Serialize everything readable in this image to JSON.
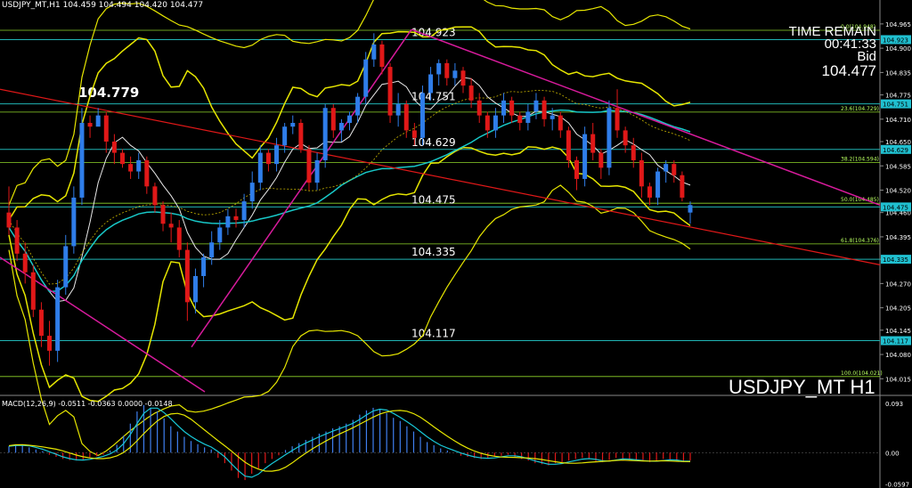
{
  "header": {
    "symbol_line": "USDJPY_MT,H1  104.459 104.494 104.420 104.477",
    "macd_line": "MACD(12,26,9) -0.0511 -0.0363 0.0000 -0.0148"
  },
  "info": {
    "time_remain_label": "TIME REMAIN",
    "time_remain_value": "00:41:33",
    "bid_label": "Bid",
    "bid_value": "104.477",
    "symbol_label": "USDJPY_MT H1"
  },
  "chart_data": {
    "type": "candlestick",
    "ylim": [
      103.98,
      105.01
    ],
    "price_ticks": [
      "104.965",
      "104.900",
      "104.835",
      "104.775",
      "104.710",
      "104.650",
      "104.585",
      "104.520",
      "104.460",
      "104.395",
      "104.335",
      "104.270",
      "104.205",
      "104.145",
      "104.080",
      "104.015"
    ],
    "macd_ticks": [
      "0.093",
      "0.00",
      "-0.0597"
    ],
    "macd_ylim": [
      -0.062,
      0.095
    ],
    "level_labels": [
      {
        "text": "104.923",
        "value": 104.923,
        "box": "104.923"
      },
      {
        "text": "104.751",
        "value": 104.751,
        "box": "104.751"
      },
      {
        "text": "104.629",
        "value": 104.629,
        "box": "104.629"
      },
      {
        "text": "104.475",
        "value": 104.475,
        "box": "104.475"
      },
      {
        "text": "104.335",
        "value": 104.335,
        "box": "104.335"
      },
      {
        "text": "104.117",
        "value": 104.117,
        "box": "104.117"
      }
    ],
    "fibo_levels": [
      {
        "label": "0.0(104.948)",
        "value": 104.948
      },
      {
        "label": "23.6(104.729)",
        "value": 104.729
      },
      {
        "label": "38.2(104.594)",
        "value": 104.594
      },
      {
        "label": "50.0(104.485)",
        "value": 104.485
      },
      {
        "label": "61.8(104.376)",
        "value": 104.376
      },
      {
        "label": "100.0(104.021)",
        "value": 104.021
      }
    ],
    "highlight_label": {
      "text": "104.779",
      "value": 104.779
    },
    "candles": [
      [
        104.46,
        104.53,
        104.4,
        104.42
      ],
      [
        104.42,
        104.44,
        104.33,
        104.35
      ],
      [
        104.35,
        104.38,
        104.27,
        104.3
      ],
      [
        104.3,
        104.32,
        104.18,
        104.2
      ],
      [
        104.2,
        104.22,
        104.1,
        104.13
      ],
      [
        104.13,
        104.17,
        104.05,
        104.09
      ],
      [
        104.09,
        104.28,
        104.06,
        104.26
      ],
      [
        104.26,
        104.4,
        104.24,
        104.37
      ],
      [
        104.37,
        104.53,
        104.35,
        104.5
      ],
      [
        104.5,
        104.74,
        104.48,
        104.7
      ],
      [
        104.7,
        104.72,
        104.66,
        104.69
      ],
      [
        104.69,
        104.74,
        104.7,
        104.72
      ],
      [
        104.72,
        104.73,
        104.62,
        104.65
      ],
      [
        104.65,
        104.67,
        104.59,
        104.62
      ],
      [
        104.62,
        104.63,
        104.58,
        104.59
      ],
      [
        104.59,
        104.61,
        104.55,
        104.57
      ],
      [
        104.57,
        104.62,
        104.55,
        104.6
      ],
      [
        104.6,
        104.61,
        104.51,
        104.53
      ],
      [
        104.53,
        104.54,
        104.46,
        104.48
      ],
      [
        104.48,
        104.49,
        104.41,
        104.43
      ],
      [
        104.43,
        104.46,
        104.38,
        104.42
      ],
      [
        104.42,
        104.44,
        104.34,
        104.36
      ],
      [
        104.36,
        104.38,
        104.17,
        104.22
      ],
      [
        104.22,
        104.31,
        104.19,
        104.29
      ],
      [
        104.29,
        104.35,
        104.26,
        104.34
      ],
      [
        104.34,
        104.41,
        104.32,
        104.38
      ],
      [
        104.38,
        104.44,
        104.36,
        104.42
      ],
      [
        104.42,
        104.47,
        104.4,
        104.45
      ],
      [
        104.45,
        104.47,
        104.42,
        104.44
      ],
      [
        104.44,
        104.51,
        104.42,
        104.49
      ],
      [
        104.49,
        104.57,
        104.47,
        104.54
      ],
      [
        104.54,
        104.64,
        104.52,
        104.62
      ],
      [
        104.62,
        104.63,
        104.57,
        104.59
      ],
      [
        104.59,
        104.66,
        104.57,
        104.64
      ],
      [
        104.64,
        104.7,
        104.62,
        104.69
      ],
      [
        104.69,
        104.72,
        104.67,
        104.7
      ],
      [
        104.7,
        104.71,
        104.62,
        104.63
      ],
      [
        104.63,
        104.64,
        104.52,
        104.54
      ],
      [
        104.54,
        104.62,
        104.52,
        104.6
      ],
      [
        104.6,
        104.75,
        104.58,
        104.74
      ],
      [
        104.74,
        104.75,
        104.66,
        104.68
      ],
      [
        104.68,
        104.71,
        104.65,
        104.7
      ],
      [
        104.7,
        104.73,
        104.68,
        104.72
      ],
      [
        104.72,
        104.78,
        104.7,
        104.77
      ],
      [
        104.77,
        104.89,
        104.75,
        104.87
      ],
      [
        104.87,
        104.94,
        104.85,
        104.91
      ],
      [
        104.91,
        104.92,
        104.83,
        104.85
      ],
      [
        104.85,
        104.86,
        104.7,
        104.72
      ],
      [
        104.72,
        104.78,
        104.69,
        104.75
      ],
      [
        104.75,
        104.76,
        104.66,
        104.68
      ],
      [
        104.68,
        104.7,
        104.64,
        104.66
      ],
      [
        104.66,
        104.8,
        104.64,
        104.78
      ],
      [
        104.78,
        104.85,
        104.76,
        104.83
      ],
      [
        104.83,
        104.87,
        104.8,
        104.86
      ],
      [
        104.86,
        104.87,
        104.8,
        104.82
      ],
      [
        104.82,
        104.86,
        104.8,
        104.84
      ],
      [
        104.84,
        104.85,
        104.78,
        104.8
      ],
      [
        104.8,
        104.82,
        104.74,
        104.76
      ],
      [
        104.76,
        104.78,
        104.7,
        104.72
      ],
      [
        104.72,
        104.73,
        104.66,
        104.68
      ],
      [
        104.68,
        104.74,
        104.66,
        104.72
      ],
      [
        104.72,
        104.78,
        104.7,
        104.76
      ],
      [
        104.76,
        104.77,
        104.7,
        104.72
      ],
      [
        104.72,
        104.73,
        104.68,
        104.7
      ],
      [
        104.7,
        104.75,
        104.68,
        104.73
      ],
      [
        104.73,
        104.78,
        104.71,
        104.76
      ],
      [
        104.76,
        104.77,
        104.69,
        104.71
      ],
      [
        104.71,
        104.74,
        104.68,
        104.72
      ],
      [
        104.72,
        104.73,
        104.66,
        104.68
      ],
      [
        104.68,
        104.69,
        104.58,
        104.6
      ],
      [
        104.6,
        104.61,
        104.52,
        104.55
      ],
      [
        104.55,
        104.69,
        104.53,
        104.67
      ],
      [
        104.67,
        104.7,
        104.6,
        104.62
      ],
      [
        104.62,
        104.63,
        104.55,
        104.58
      ],
      [
        104.58,
        104.76,
        104.56,
        104.74
      ],
      [
        104.74,
        104.79,
        104.66,
        104.68
      ],
      [
        104.68,
        104.69,
        104.62,
        104.64
      ],
      [
        104.64,
        104.66,
        104.58,
        104.6
      ],
      [
        104.6,
        104.62,
        104.5,
        104.53
      ],
      [
        104.53,
        104.54,
        104.48,
        104.5
      ],
      [
        104.5,
        104.58,
        104.48,
        104.57
      ],
      [
        104.57,
        104.6,
        104.54,
        104.59
      ],
      [
        104.59,
        104.6,
        104.54,
        104.56
      ],
      [
        104.56,
        104.57,
        104.49,
        104.5
      ],
      [
        104.46,
        104.49,
        104.43,
        104.48
      ]
    ],
    "macd_hist": [
      0.012,
      0.015,
      0.014,
      0.01,
      0.006,
      0.003,
      -0.004,
      -0.008,
      -0.012,
      -0.014,
      -0.015,
      -0.013,
      -0.01,
      -0.007,
      -0.004,
      0.004,
      0.015,
      0.032,
      0.055,
      0.078,
      0.09,
      0.085,
      0.078,
      0.065,
      0.05,
      0.04,
      0.03,
      0.022,
      0.016,
      0.01,
      0.006,
      -0.01,
      -0.02,
      -0.034,
      -0.048,
      -0.052,
      -0.04,
      -0.03,
      -0.02,
      -0.012,
      -0.005,
      0.005,
      0.012,
      0.018,
      0.024,
      0.03,
      0.036,
      0.04,
      0.046,
      0.05,
      0.055,
      0.062,
      0.072,
      0.08,
      0.085,
      0.082,
      0.075,
      0.066,
      0.06,
      0.05,
      0.04,
      0.03,
      0.02,
      0.014,
      0.008,
      0.004,
      0.0,
      -0.006,
      -0.008,
      -0.01,
      -0.012,
      -0.01,
      -0.008,
      -0.006,
      -0.004,
      -0.008,
      -0.012,
      -0.015,
      -0.02,
      -0.022,
      -0.024,
      -0.02,
      -0.018,
      -0.015,
      -0.012,
      -0.01,
      -0.012,
      -0.016,
      -0.018,
      -0.014,
      -0.01,
      -0.012,
      -0.015,
      -0.014,
      -0.016,
      -0.018,
      -0.015,
      -0.012,
      -0.014,
      -0.016,
      -0.018,
      -0.015
    ],
    "colors": {
      "bull": "#2f7de9",
      "bear": "#e01818",
      "band": "#e6e600",
      "ma_cyan": "#18c8c8",
      "trend_red": "#e01818",
      "trend_magenta": "#d81b9c",
      "hline": "#20b4b4",
      "fibo": "#8fd62a"
    }
  }
}
